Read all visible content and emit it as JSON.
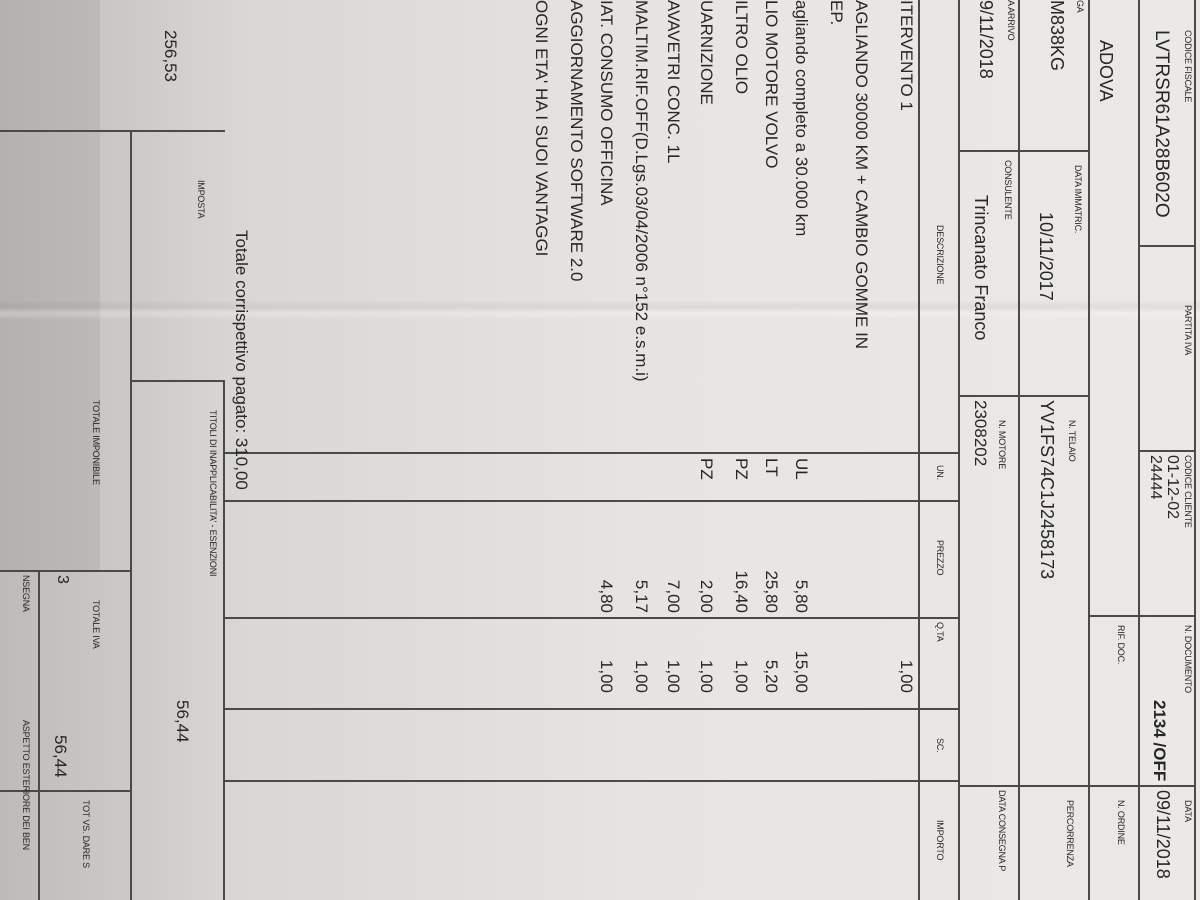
{
  "header": {
    "codice_fiscale_label": "CODICE FISCALE",
    "codice_fiscale": "LVTRSR61A28B602O",
    "partita_iva_label": "PARTITA IVA",
    "codice_cliente_label": "CODICE CLIENTE",
    "codice_cliente_1": "01-12-02",
    "codice_cliente_2": "24444",
    "n_documento_label": "N. DOCUMENTO",
    "n_documento": "2134 /OFF",
    "data_label": "DATA",
    "data": "09/11/2018",
    "city": "ADOVA",
    "rif_doc_label": "RIF. DOC.",
    "n_ordine_label": "N. ORDINE",
    "targa_label": "GA",
    "targa": "M838KG",
    "data_immatric_label": "DATA IMMATRIC.",
    "data_immatric": "10/11/2017",
    "n_telaio_label": "N. TELAIO",
    "n_telaio": "YV1FS74C1J2458173",
    "percorrenza_label": "PERCORRENZA",
    "data_arrivo_label": "A ARRIVO",
    "data_arrivo": "9/11/2018",
    "consulente_label": "CONSULENTE",
    "consulente": "Trincanato Franco",
    "n_motore_label": "N. MOTORE",
    "n_motore": "2308202",
    "data_consegna_label": "DATA CONSEGNA P"
  },
  "table": {
    "columns": [
      "DESCRIZIONE",
      "UN.",
      "PREZZO",
      "Q.TA",
      "SC.",
      "IMPORTO"
    ],
    "rows": [
      {
        "desc": "ITERVENTO 1",
        "un": "",
        "prezzo": "",
        "qta": "1,00"
      },
      {
        "desc": "AGLIANDO 30000 KM + CAMBIO GOMME IN",
        "un": "",
        "prezzo": "",
        "qta": ""
      },
      {
        "desc": "EP.",
        "un": "",
        "prezzo": "",
        "qta": ""
      },
      {
        "desc": "agliando completo a 30.000 km",
        "un": "UL",
        "prezzo": "5,80",
        "qta": "15,00"
      },
      {
        "desc": "LIO MOTORE VOLVO",
        "un": "LT",
        "prezzo": "25,80",
        "qta": "5,20"
      },
      {
        "desc": "ILTRO OLIO",
        "un": "PZ",
        "prezzo": "16,40",
        "qta": "1,00"
      },
      {
        "desc": "UARNIZIONE",
        "un": "PZ",
        "prezzo": "2,00",
        "qta": "1,00"
      },
      {
        "desc": "AVAVETRI CONC. 1L",
        "un": "",
        "prezzo": "7,00",
        "qta": "1,00"
      },
      {
        "desc": "MALTIM.RIF.OFF(D.Lgs.03/04/2006 n°152 e.s.m.i)",
        "un": "",
        "prezzo": "5,17",
        "qta": "1,00"
      },
      {
        "desc": "IAT. CONSUMO OFFICINA",
        "un": "",
        "prezzo": "4,80",
        "qta": "1,00"
      },
      {
        "desc": "AGGIORNAMENTO SOFTWARE 2.0",
        "un": "",
        "prezzo": "",
        "qta": ""
      },
      {
        "desc": "OGNI ETA' HA I SUOI VANTAGGI",
        "un": "",
        "prezzo": "",
        "qta": ""
      }
    ]
  },
  "footer": {
    "totale_corrispettivo": "Totale corrispettivo pagato:  310,00",
    "titoli_label": "TITOLI DI INAPPLICABILITA' - ESENZIONI",
    "imposta_label": "IMPOSTA",
    "imponibile_value": "256,53",
    "imposta_value": "56,44",
    "totale_imponibile_label": "TOTALE IMPONIBILE",
    "totale_imponibile_value": "3",
    "totale_iva_label": "TOTALE IVA",
    "totale_iva_value": "56,44",
    "tot_vs_dare_label": "TOT VS. DARE S",
    "consegna_label": "NSEGNA",
    "aspetto_label": "ASPETTO ESTERIORE DEI BEN"
  }
}
